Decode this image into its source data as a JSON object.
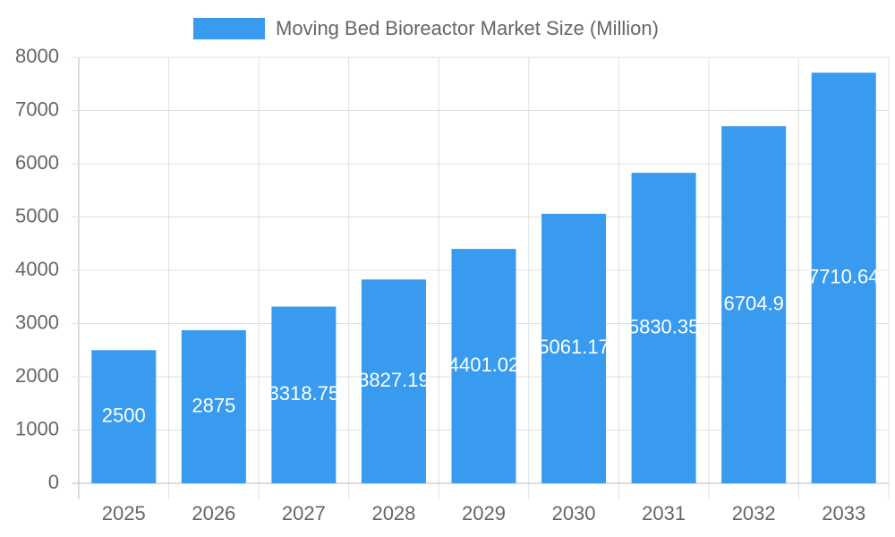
{
  "chart_data": {
    "type": "bar",
    "categories": [
      "2025",
      "2026",
      "2027",
      "2028",
      "2029",
      "2030",
      "2031",
      "2032",
      "2033"
    ],
    "series": [
      {
        "name": "Moving Bed Bioreactor Market Size (Million)",
        "color": "#389bf0",
        "values": [
          2500,
          2875,
          3318.75,
          3827.19,
          4401.02,
          5061.17,
          5830.35,
          6704.9,
          7710.64
        ]
      }
    ],
    "ylim": [
      0,
      8000
    ],
    "yticks": [
      0,
      1000,
      2000,
      3000,
      4000,
      5000,
      6000,
      7000,
      8000
    ],
    "grid": true,
    "legend": "top"
  }
}
